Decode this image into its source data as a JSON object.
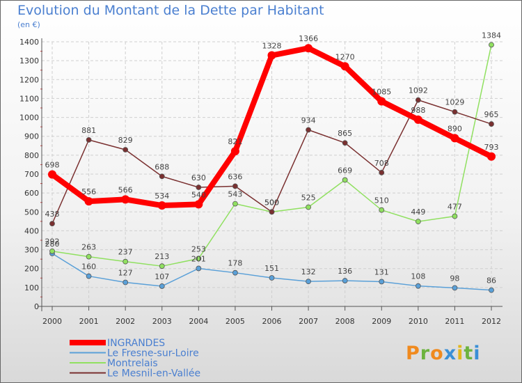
{
  "chart_data": {
    "type": "line",
    "title": "Evolution du Montant de la Dette par Habitant",
    "subtitle": "(en €)",
    "x": [
      "2000",
      "2001",
      "2002",
      "2003",
      "2004",
      "2005",
      "2006",
      "2007",
      "2008",
      "2009",
      "2010",
      "2011",
      "2012"
    ],
    "ylim": [
      0,
      1400
    ],
    "yticks": [
      0,
      100,
      200,
      300,
      400,
      500,
      600,
      700,
      800,
      900,
      1000,
      1100,
      1200,
      1300,
      1400
    ],
    "grid": true,
    "legend_position": "bottom-left",
    "series": [
      {
        "name": "INGRANDES",
        "color": "#ff0000",
        "values": [
          698,
          556,
          566,
          534,
          540,
          821,
          1328,
          1366,
          1270,
          1085,
          988,
          890,
          793
        ]
      },
      {
        "name": "Le Fresne-sur-Loire",
        "color": "#5aa0d8",
        "values": [
          280,
          160,
          127,
          107,
          201,
          178,
          151,
          132,
          136,
          131,
          108,
          98,
          86
        ]
      },
      {
        "name": "Montrelais",
        "color": "#90e060",
        "values": [
          292,
          263,
          237,
          213,
          253,
          543,
          500,
          525,
          669,
          510,
          449,
          477,
          1384
        ]
      },
      {
        "name": "Le Mesnil-en-Vallée",
        "color": "#7a3030",
        "values": [
          438,
          881,
          829,
          688,
          630,
          636,
          500,
          934,
          865,
          708,
          1092,
          1029,
          965
        ]
      }
    ]
  },
  "logo": {
    "letters": [
      {
        "ch": "P",
        "color": "#f08a1e"
      },
      {
        "ch": "r",
        "color": "#6db33f"
      },
      {
        "ch": "o",
        "color": "#f08a1e"
      },
      {
        "ch": "x",
        "color": "#3a8fd6"
      },
      {
        "ch": "i",
        "color": "#e2b71c"
      },
      {
        "ch": "t",
        "color": "#6db33f"
      },
      {
        "ch": "i",
        "color": "#3a8fd6"
      }
    ]
  }
}
